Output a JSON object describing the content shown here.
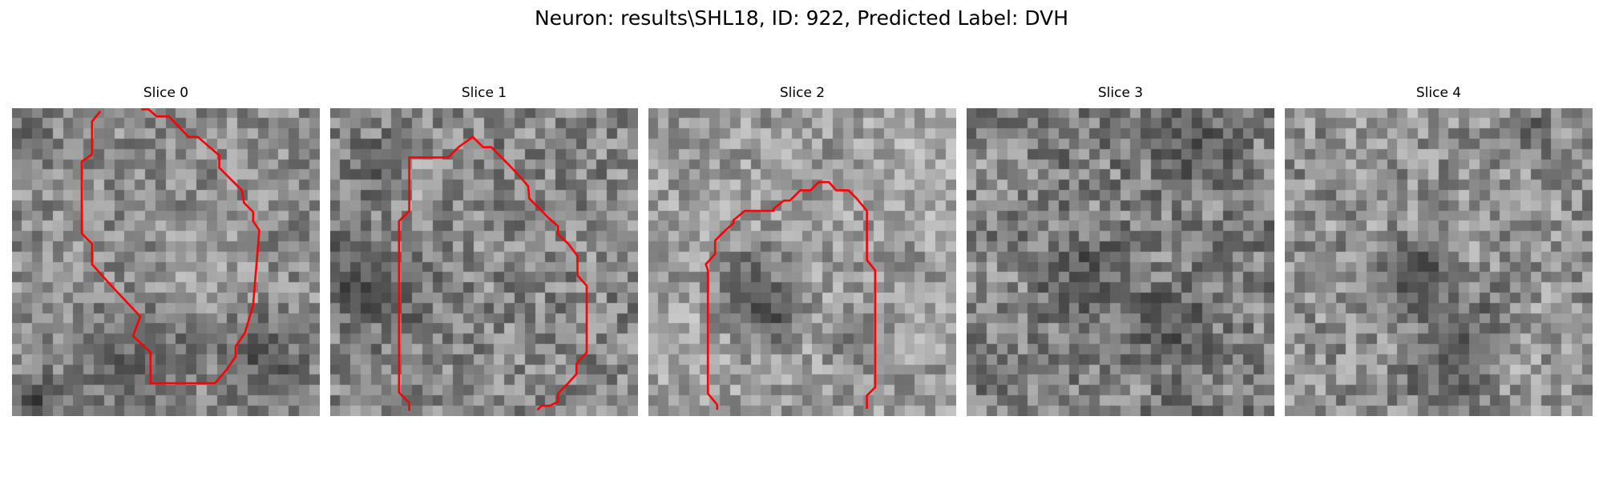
{
  "figure": {
    "title": "Neuron: results\\SHL18, ID: 922, Predicted Label: DVH"
  },
  "colors": {
    "contour": "#ff0000",
    "background": "#ffffff"
  },
  "grid_size": 30,
  "panels": [
    {
      "title": "Slice 0",
      "texture": {
        "seed": 11,
        "base": 140,
        "spread": 45,
        "dark_spots": [
          [
            12,
            24,
            4,
            0.45
          ],
          [
            24,
            24,
            3,
            0.55
          ],
          [
            2,
            28,
            2,
            0.6
          ],
          [
            1,
            2,
            2,
            0.35
          ]
        ],
        "light_spots": [
          [
            18,
            15,
            3,
            0.25
          ]
        ]
      },
      "contour": [
        [
          8.6,
          0.3
        ],
        [
          7.8,
          1.3
        ],
        [
          7.8,
          4.5
        ],
        [
          6.8,
          5.2
        ],
        [
          6.8,
          12.2
        ],
        [
          7.8,
          13.2
        ],
        [
          7.8,
          15.2
        ],
        [
          9.6,
          17.2
        ],
        [
          12.5,
          20.3
        ],
        [
          11.8,
          22.2
        ],
        [
          13.5,
          23.8
        ],
        [
          13.5,
          26.8
        ],
        [
          19.8,
          26.8
        ],
        [
          20.9,
          25.5
        ],
        [
          21.8,
          24.2
        ],
        [
          21.8,
          23.2
        ],
        [
          22.7,
          21.9
        ],
        [
          23.5,
          19.2
        ],
        [
          24.1,
          11.9
        ],
        [
          23.5,
          11.0
        ],
        [
          23.5,
          10.1
        ],
        [
          22.6,
          9.2
        ],
        [
          22.4,
          8.0
        ],
        [
          20.2,
          5.8
        ],
        [
          20.2,
          4.6
        ],
        [
          18.1,
          2.8
        ],
        [
          17.2,
          2.8
        ],
        [
          15.3,
          0.8
        ],
        [
          14.1,
          0.8
        ],
        [
          13.3,
          0.1
        ],
        [
          12.6,
          0.1
        ]
      ]
    },
    {
      "title": "Slice 1",
      "texture": {
        "seed": 23,
        "base": 135,
        "spread": 50,
        "dark_spots": [
          [
            1,
            16,
            3,
            0.55
          ],
          [
            6,
            18,
            3,
            0.4
          ],
          [
            4,
            5,
            2,
            0.4
          ]
        ],
        "light_spots": [
          [
            9,
            6,
            2,
            0.25
          ],
          [
            28,
            12,
            2,
            0.25
          ]
        ]
      },
      "contour": [
        [
          7.7,
          29.5
        ],
        [
          7.7,
          28.7
        ],
        [
          6.7,
          27.7
        ],
        [
          6.7,
          11.0
        ],
        [
          7.7,
          10.0
        ],
        [
          7.7,
          4.8
        ],
        [
          8.7,
          4.8
        ],
        [
          11.5,
          4.8
        ],
        [
          12.5,
          3.8
        ],
        [
          13.9,
          2.8
        ],
        [
          14.9,
          3.8
        ],
        [
          15.7,
          3.8
        ],
        [
          17.4,
          5.5
        ],
        [
          18.6,
          6.8
        ],
        [
          19.3,
          7.6
        ],
        [
          19.4,
          8.8
        ],
        [
          21.3,
          10.7
        ],
        [
          22.2,
          11.5
        ],
        [
          22.2,
          12.3
        ],
        [
          23.2,
          13.2
        ],
        [
          24.1,
          14.4
        ],
        [
          24.1,
          16.3
        ],
        [
          25.0,
          17.3
        ],
        [
          25.0,
          23.8
        ],
        [
          24.0,
          24.9
        ],
        [
          24.0,
          25.9
        ],
        [
          23.1,
          26.9
        ],
        [
          22.2,
          27.8
        ],
        [
          22.2,
          28.6
        ],
        [
          21.4,
          29.0
        ],
        [
          20.6,
          29.0
        ],
        [
          20.2,
          29.4
        ]
      ]
    },
    {
      "title": "Slice 2",
      "texture": {
        "seed": 37,
        "base": 155,
        "spread": 45,
        "dark_spots": [
          [
            10,
            17,
            3,
            0.5
          ],
          [
            12,
            20,
            2,
            0.45
          ],
          [
            20,
            22,
            2,
            0.4
          ]
        ],
        "light_spots": [
          [
            2,
            22,
            3,
            0.2
          ],
          [
            25,
            6,
            4,
            0.2
          ]
        ]
      },
      "contour": [
        [
          6.7,
          29.4
        ],
        [
          6.7,
          28.9
        ],
        [
          5.8,
          27.8
        ],
        [
          5.8,
          15.8
        ],
        [
          5.6,
          15.2
        ],
        [
          6.5,
          14.2
        ],
        [
          6.5,
          12.9
        ],
        [
          7.5,
          11.9
        ],
        [
          8.3,
          11.2
        ],
        [
          8.3,
          10.9
        ],
        [
          9.4,
          10.0
        ],
        [
          12.2,
          10.0
        ],
        [
          12.2,
          9.8
        ],
        [
          13.2,
          9.0
        ],
        [
          13.8,
          9.0
        ],
        [
          14.8,
          8.0
        ],
        [
          15.8,
          8.0
        ],
        [
          16.6,
          7.2
        ],
        [
          17.6,
          7.2
        ],
        [
          18.3,
          8.0
        ],
        [
          19.5,
          8.0
        ],
        [
          20.3,
          8.8
        ],
        [
          21.3,
          10.0
        ],
        [
          21.3,
          14.8
        ],
        [
          22.1,
          15.8
        ],
        [
          22.1,
          27.2
        ],
        [
          21.3,
          28.0
        ],
        [
          21.3,
          29.3
        ]
      ]
    },
    {
      "title": "Slice 3",
      "texture": {
        "seed": 53,
        "base": 128,
        "spread": 52,
        "dark_spots": [
          [
            11,
            16,
            3,
            0.45
          ],
          [
            19,
            21,
            3,
            0.5
          ],
          [
            22,
            3,
            3,
            0.45
          ]
        ],
        "light_spots": [
          [
            2,
            6,
            2,
            0.2
          ],
          [
            2,
            16,
            2,
            0.2
          ]
        ]
      },
      "contour": []
    },
    {
      "title": "Slice 4",
      "texture": {
        "seed": 71,
        "base": 145,
        "spread": 50,
        "dark_spots": [
          [
            12,
            16,
            3,
            0.6
          ],
          [
            15,
            26,
            3,
            0.5
          ],
          [
            18,
            21,
            3,
            0.4
          ],
          [
            23,
            2,
            2,
            0.4
          ]
        ],
        "light_spots": [
          [
            10,
            1,
            2,
            0.2
          ],
          [
            22,
            24,
            2,
            0.2
          ]
        ]
      },
      "contour": []
    }
  ]
}
